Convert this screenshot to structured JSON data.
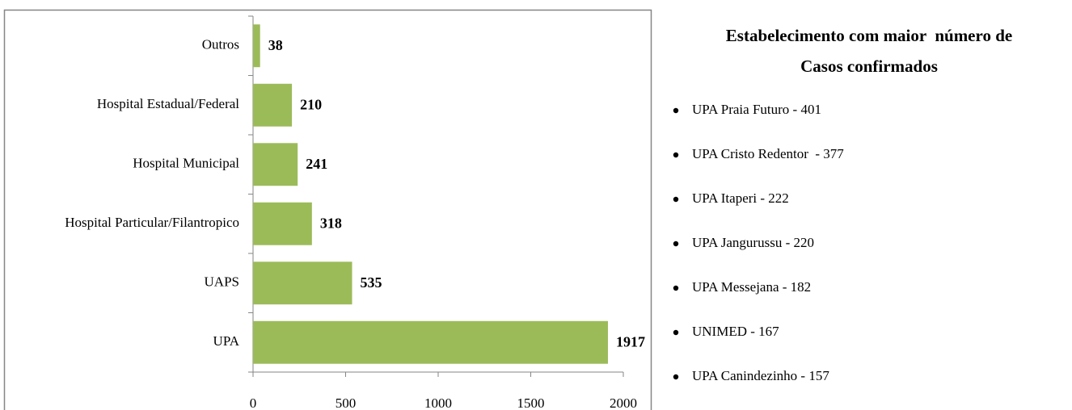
{
  "chart_data": {
    "type": "bar",
    "orientation": "horizontal",
    "categories": [
      "Outros",
      "Hospital Estadual/Federal",
      "Hospital Municipal",
      "Hospital Particular/Filantropico",
      "UAPS",
      "UPA"
    ],
    "values": [
      38,
      210,
      241,
      318,
      535,
      1917
    ],
    "color": "#9bbb59",
    "xlim": [
      0,
      2000
    ],
    "xticks": [
      0,
      500,
      1000,
      1500,
      2000
    ],
    "grid": false
  },
  "panel": {
    "title": [
      "Estabelecimento com maior  número de",
      "Casos confirmados"
    ],
    "items": [
      "UPA Praia Futuro - 401",
      "UPA Cristo Redentor  - 377",
      "UPA Itaperi - 222",
      "UPA Jangurussu - 220",
      "UPA Messejana - 182",
      "UNIMED - 167",
      "UPA Canindezinho - 157"
    ]
  }
}
